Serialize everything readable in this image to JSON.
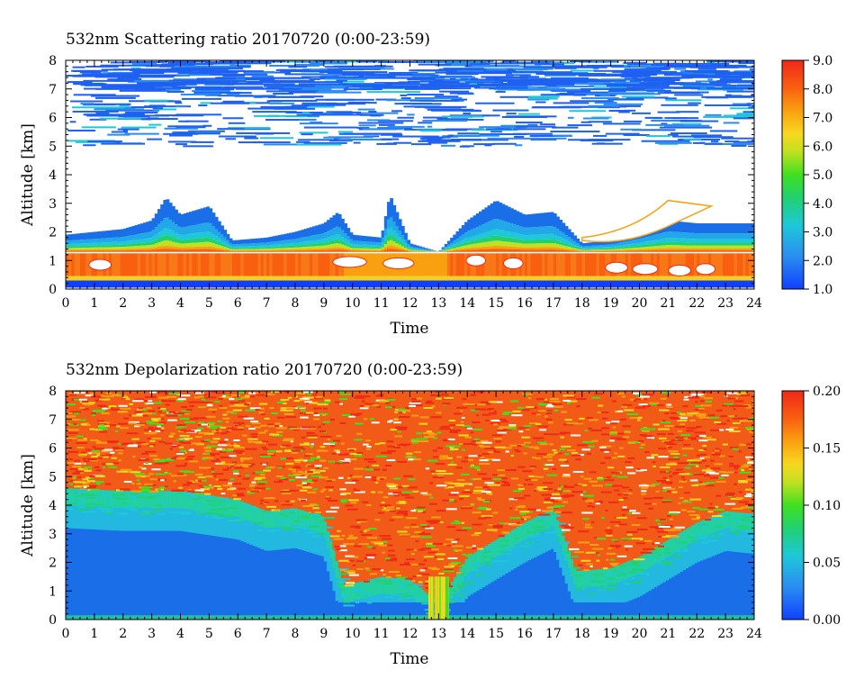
{
  "chart_data": [
    {
      "type": "heatmap",
      "title": "532nm Scattering ratio  20170720 (0:00-23:59)",
      "xlabel": "Time",
      "ylabel": "Altitude [km]",
      "xlim": [
        0,
        24
      ],
      "ylim": [
        0,
        8
      ],
      "x_ticks": [
        "0",
        "1",
        "2",
        "3",
        "4",
        "5",
        "6",
        "7",
        "8",
        "9",
        "10",
        "11",
        "12",
        "13",
        "14",
        "15",
        "16",
        "17",
        "18",
        "19",
        "20",
        "21",
        "22",
        "23",
        "24"
      ],
      "y_ticks": [
        "0",
        "1",
        "2",
        "3",
        "4",
        "5",
        "6",
        "7",
        "8"
      ],
      "colorbar": {
        "min": 1.0,
        "max": 9.0,
        "tick_labels": [
          "9.0",
          "8.0",
          "7.0",
          "6.0",
          "5.0",
          "4.0",
          "3.0",
          "2.0",
          "1.0"
        ]
      },
      "features": {
        "boundary_layer_top_km": [
          [
            0,
            1.9
          ],
          [
            1,
            2.0
          ],
          [
            2,
            2.1
          ],
          [
            3,
            2.4
          ],
          [
            3.5,
            3.2
          ],
          [
            4,
            2.6
          ],
          [
            5,
            2.9
          ],
          [
            5.8,
            1.7
          ],
          [
            7,
            1.8
          ],
          [
            8,
            2.0
          ],
          [
            9,
            2.3
          ],
          [
            9.5,
            2.7
          ],
          [
            10,
            1.9
          ],
          [
            11,
            1.8
          ],
          [
            11.3,
            3.3
          ],
          [
            12,
            1.6
          ],
          [
            13,
            1.3
          ],
          [
            14,
            2.4
          ],
          [
            15,
            3.1
          ],
          [
            16,
            2.6
          ],
          [
            17,
            2.7
          ],
          [
            18,
            1.6
          ],
          [
            19,
            1.7
          ],
          [
            20,
            2.0
          ],
          [
            21,
            2.4
          ],
          [
            22,
            2.3
          ],
          [
            23,
            2.3
          ],
          [
            23.9,
            2.3
          ]
        ],
        "aerosol_peak_layer_km": [
          0.4,
          1.3
        ],
        "cirrus_layer_km": [
          5.0,
          8.0
        ]
      }
    },
    {
      "type": "heatmap",
      "title": "532nm Depolarization ratio  20170720 (0:00-23:59)",
      "xlabel": "Time",
      "ylabel": "Altitude [km]",
      "xlim": [
        0,
        24
      ],
      "ylim": [
        0,
        8
      ],
      "x_ticks": [
        "0",
        "1",
        "2",
        "3",
        "4",
        "5",
        "6",
        "7",
        "8",
        "9",
        "10",
        "11",
        "12",
        "13",
        "14",
        "15",
        "16",
        "17",
        "18",
        "19",
        "20",
        "21",
        "22",
        "23",
        "24"
      ],
      "y_ticks": [
        "0",
        "1",
        "2",
        "3",
        "4",
        "5",
        "6",
        "7",
        "8"
      ],
      "colorbar": {
        "min": 0.0,
        "max": 0.2,
        "tick_labels": [
          "0.20",
          "0.15",
          "0.10",
          "0.05",
          "0.00"
        ]
      },
      "features": {
        "high_depol_bottom_km": [
          [
            0,
            4.6
          ],
          [
            2,
            4.5
          ],
          [
            4,
            4.5
          ],
          [
            6,
            4.2
          ],
          [
            7,
            3.8
          ],
          [
            8,
            3.9
          ],
          [
            9,
            3.6
          ],
          [
            9.7,
            1.2
          ],
          [
            11,
            1.5
          ],
          [
            12,
            1.4
          ],
          [
            13,
            0.6
          ],
          [
            14,
            2.2
          ],
          [
            15,
            2.8
          ],
          [
            16,
            3.4
          ],
          [
            17,
            3.9
          ],
          [
            17.8,
            1.7
          ],
          [
            19,
            1.8
          ],
          [
            20,
            2.2
          ],
          [
            21,
            2.8
          ],
          [
            22,
            3.4
          ],
          [
            23,
            3.8
          ],
          [
            24,
            3.7
          ]
        ]
      }
    }
  ]
}
